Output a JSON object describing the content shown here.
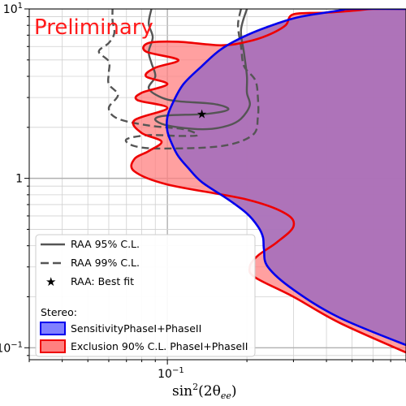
{
  "chart_data": {
    "type": "area",
    "annotation": "Preliminary",
    "xlabel_main": "sin",
    "xlabel_sup": "2",
    "xlabel_arg": "(2θ",
    "xlabel_sub": "ee",
    "xlabel_close": ")",
    "x_scale": "log",
    "y_scale": "log",
    "xlim": [
      0.03,
      0.8
    ],
    "ylim": [
      0.085,
      10
    ],
    "x_ticks": [
      {
        "value": 0.1,
        "label_base": "10",
        "label_exp": "−1"
      }
    ],
    "y_ticks": [
      {
        "value": 10,
        "label_base": "10",
        "label_exp": "1"
      },
      {
        "value": 1,
        "label_base": "1",
        "label_exp": ""
      },
      {
        "value": 0.1,
        "label_base": "10",
        "label_exp": "−1"
      }
    ],
    "grid": true,
    "legend_placement": "bottom-left",
    "legend": {
      "raa95": "RAA 95% C.L.",
      "raa99": "RAA 99% C.L.",
      "bestfit": "RAA: Best fit",
      "stereo_title": "Stereo:",
      "sensitivity": "SensitivityPhaseI+PhaseII",
      "exclusion": "Exclusion 90% C.L. PhaseI+PhaseII"
    },
    "colors": {
      "sensitivity_fill": "#8080ff",
      "sensitivity_line": "#0000ee",
      "exclusion_fill": "#ff8080",
      "exclusion_line": "#ee0000",
      "overlap_fill": "#b070b0",
      "raa_line": "#555555"
    },
    "best_fit": {
      "x": 0.135,
      "y": 2.4
    },
    "sensitivity_contour": [
      [
        0.85,
        10
      ],
      [
        0.5,
        10
      ],
      [
        0.45,
        9.8
      ],
      [
        0.32,
        9.0
      ],
      [
        0.26,
        8.2
      ],
      [
        0.2,
        7.0
      ],
      [
        0.16,
        5.8
      ],
      [
        0.135,
        4.6
      ],
      [
        0.115,
        3.6
      ],
      [
        0.105,
        2.8
      ],
      [
        0.1,
        2.3
      ],
      [
        0.1,
        1.9
      ],
      [
        0.104,
        1.6
      ],
      [
        0.11,
        1.35
      ],
      [
        0.12,
        1.15
      ],
      [
        0.135,
        0.95
      ],
      [
        0.17,
        0.75
      ],
      [
        0.2,
        0.62
      ],
      [
        0.22,
        0.52
      ],
      [
        0.23,
        0.45
      ],
      [
        0.232,
        0.38
      ],
      [
        0.24,
        0.3
      ],
      [
        0.3,
        0.22
      ],
      [
        0.45,
        0.15
      ],
      [
        0.85,
        0.1
      ]
    ],
    "exclusion_contour": [
      [
        0.85,
        10
      ],
      [
        0.6,
        10
      ],
      [
        0.52,
        9.8
      ],
      [
        0.4,
        9.5
      ],
      [
        0.3,
        9.3
      ],
      [
        0.28,
        8.0
      ],
      [
        0.24,
        7.0
      ],
      [
        0.2,
        6.4
      ],
      [
        0.16,
        6.1
      ],
      [
        0.11,
        6.4
      ],
      [
        0.085,
        6.3
      ],
      [
        0.083,
        5.6
      ],
      [
        0.11,
        5.0
      ],
      [
        0.09,
        4.5
      ],
      [
        0.083,
        4.0
      ],
      [
        0.1,
        3.6
      ],
      [
        0.08,
        3.2
      ],
      [
        0.077,
        2.9
      ],
      [
        0.1,
        2.6
      ],
      [
        0.075,
        2.2
      ],
      [
        0.08,
        1.85
      ],
      [
        0.095,
        1.65
      ],
      [
        0.085,
        1.45
      ],
      [
        0.075,
        1.3
      ],
      [
        0.075,
        1.1
      ],
      [
        0.1,
        0.92
      ],
      [
        0.2,
        0.75
      ],
      [
        0.28,
        0.62
      ],
      [
        0.3,
        0.52
      ],
      [
        0.26,
        0.42
      ],
      [
        0.22,
        0.35
      ],
      [
        0.205,
        0.3
      ],
      [
        0.215,
        0.26
      ],
      [
        0.3,
        0.2
      ],
      [
        0.45,
        0.14
      ],
      [
        0.85,
        0.09
      ]
    ],
    "raa95_contour": [
      [
        0.2,
        10
      ],
      [
        0.19,
        7.5
      ],
      [
        0.195,
        5.5
      ],
      [
        0.2,
        4.0
      ],
      [
        0.2,
        3.2
      ],
      [
        0.205,
        2.7
      ],
      [
        0.19,
        2.25
      ],
      [
        0.17,
        2.05
      ],
      [
        0.14,
        1.95
      ],
      [
        0.11,
        2.0
      ],
      [
        0.095,
        2.1
      ],
      [
        0.09,
        2.25
      ],
      [
        0.1,
        2.35
      ],
      [
        0.14,
        2.4
      ],
      [
        0.17,
        2.55
      ],
      [
        0.15,
        2.75
      ],
      [
        0.11,
        2.85
      ],
      [
        0.095,
        3.0
      ],
      [
        0.085,
        3.4
      ],
      [
        0.09,
        4.0
      ],
      [
        0.087,
        4.8
      ],
      [
        0.085,
        5.6
      ],
      [
        0.088,
        6.8
      ],
      [
        0.085,
        8.2
      ],
      [
        0.087,
        10
      ]
    ],
    "raa99_contour": [
      [
        0.19,
        10
      ],
      [
        0.185,
        8.0
      ],
      [
        0.19,
        6.0
      ],
      [
        0.195,
        4.6
      ],
      [
        0.215,
        3.8
      ],
      [
        0.22,
        3.0
      ],
      [
        0.22,
        2.3
      ],
      [
        0.21,
        1.8
      ],
      [
        0.16,
        1.55
      ],
      [
        0.095,
        1.5
      ],
      [
        0.075,
        1.55
      ],
      [
        0.07,
        1.7
      ],
      [
        0.085,
        1.8
      ],
      [
        0.11,
        1.78
      ],
      [
        0.13,
        1.8
      ],
      [
        0.115,
        1.95
      ],
      [
        0.085,
        2.05
      ],
      [
        0.065,
        2.25
      ],
      [
        0.06,
        2.6
      ],
      [
        0.065,
        3.1
      ],
      [
        0.06,
        3.6
      ],
      [
        0.06,
        4.2
      ],
      [
        0.06,
        4.9
      ],
      [
        0.055,
        5.6
      ],
      [
        0.06,
        6.3
      ],
      [
        0.063,
        7.2
      ],
      [
        0.062,
        8.5
      ],
      [
        0.062,
        10
      ]
    ],
    "overlap_region": [
      [
        0.85,
        10
      ],
      [
        0.5,
        10
      ],
      [
        0.45,
        9.8
      ],
      [
        0.32,
        9.0
      ],
      [
        0.26,
        8.2
      ],
      [
        0.2,
        7.0
      ],
      [
        0.16,
        5.8
      ],
      [
        0.135,
        4.6
      ],
      [
        0.115,
        3.6
      ],
      [
        0.105,
        2.8
      ],
      [
        0.1,
        2.3
      ],
      [
        0.1,
        1.9
      ],
      [
        0.104,
        1.6
      ],
      [
        0.11,
        1.35
      ],
      [
        0.12,
        1.15
      ],
      [
        0.135,
        0.95
      ],
      [
        0.17,
        0.75
      ],
      [
        0.2,
        0.62
      ],
      [
        0.22,
        0.52
      ],
      [
        0.23,
        0.45
      ],
      [
        0.232,
        0.38
      ],
      [
        0.24,
        0.3
      ],
      [
        0.3,
        0.22
      ],
      [
        0.45,
        0.15
      ],
      [
        0.85,
        0.1
      ]
    ]
  }
}
